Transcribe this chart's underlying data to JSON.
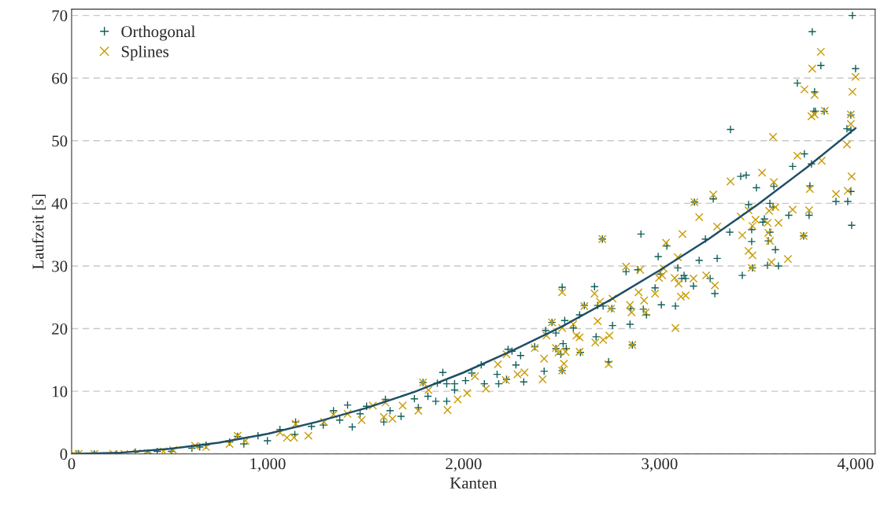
{
  "chart_data": {
    "type": "scatter",
    "xlabel": "Kanten",
    "ylabel": "Laufzeit [s]",
    "xlim": [
      0,
      4100
    ],
    "ylim": [
      0,
      71
    ],
    "xticks": [
      0,
      {
        "value": 1000,
        "label": "1,000"
      },
      {
        "value": 2000,
        "label": "2,000"
      },
      {
        "value": 3000,
        "label": "3,000"
      },
      {
        "value": 4000,
        "label": "4,000"
      }
    ],
    "yticks": [
      0,
      10,
      20,
      30,
      40,
      50,
      60,
      70
    ],
    "grid": "y",
    "legend": "top left",
    "series": [
      {
        "name": "Orthogonal",
        "color": "#0f5f5a",
        "marker": "plus",
        "x": [
          3984,
          3779,
          3823,
          4000,
          3703,
          3791,
          3787,
          3795,
          3840,
          3976,
          3362,
          3956,
          3976,
          3739,
          3775,
          3679,
          3414,
          3442,
          3494,
          3583,
          3767,
          3976,
          3900,
          3960,
          3454,
          3274,
          3178,
          3563,
          3579,
          3659,
          3763,
          3535,
          3527,
          3470,
          3563,
          2905,
          3234,
          3358,
          3980,
          3470,
          3555,
          3735,
          2708,
          3591,
          2993,
          3202,
          3294,
          2829,
          2889,
          3093,
          3037,
          3422,
          3551,
          3607,
          3474,
          3005,
          3125,
          3113,
          3133,
          3173,
          3258,
          3282,
          2977,
          2668,
          2503,
          2592,
          2616,
          2684,
          2712,
          2756,
          2853,
          2917,
          2933,
          3009,
          3081,
          2760,
          2849,
          2516,
          2560,
          2471,
          2508,
          2524,
          2471,
          2496,
          2596,
          2676,
          2861,
          2740,
          2503,
          2451,
          2419,
          2363,
          2227,
          2247,
          2291,
          2267,
          2307,
          2411,
          2171,
          2179,
          2219,
          2090,
          2042,
          2010,
          2106,
          1954,
          1914,
          1866,
          1894,
          1954,
          1914,
          1858,
          1818,
          1793,
          1749,
          1681,
          1769,
          1601,
          1593,
          1625,
          1505,
          1472,
          1408,
          1432,
          1336,
          1368,
          1284,
          1224,
          1143,
          1139,
          1063,
          951,
          847,
          806,
          879,
          999,
          686,
          654,
          614,
          510,
          437,
          389,
          325,
          229,
          116,
          36
        ],
        "values": [
          70.0,
          67.4,
          62.0,
          61.5,
          59.2,
          57.8,
          54.7,
          54.7,
          54.7,
          54.1,
          51.8,
          51.9,
          51.7,
          47.9,
          46.3,
          45.9,
          44.3,
          44.5,
          42.5,
          42.7,
          42.8,
          41.9,
          40.3,
          40.3,
          39.8,
          40.7,
          40.2,
          40.0,
          39.4,
          38.1,
          38.1,
          37.5,
          37.0,
          35.8,
          35.4,
          35.1,
          34.3,
          35.4,
          36.5,
          33.9,
          34.0,
          34.8,
          34.3,
          32.6,
          31.5,
          30.9,
          31.2,
          29.1,
          29.4,
          29.7,
          33.2,
          28.5,
          30.1,
          30.0,
          29.7,
          28.7,
          28.5,
          28.0,
          28.0,
          26.8,
          28.0,
          25.6,
          26.5,
          26.7,
          26.6,
          22.2,
          23.7,
          23.7,
          23.6,
          23.2,
          23.2,
          23.1,
          22.2,
          23.8,
          23.6,
          20.5,
          20.7,
          21.3,
          20.1,
          19.3,
          17.6,
          16.8,
          16.8,
          15.9,
          16.2,
          18.7,
          17.4,
          14.7,
          13.3,
          21.0,
          19.7,
          17.1,
          16.7,
          16.4,
          15.7,
          14.2,
          11.5,
          13.2,
          12.7,
          11.2,
          11.9,
          14.2,
          12.9,
          11.7,
          11.2,
          11.2,
          11.2,
          11.3,
          13.0,
          10.2,
          8.4,
          8.4,
          9.2,
          11.4,
          8.8,
          6.0,
          7.4,
          8.7,
          5.1,
          6.9,
          7.6,
          6.4,
          7.8,
          4.3,
          6.9,
          5.4,
          4.6,
          4.4,
          5.1,
          3.1,
          3.9,
          2.9,
          2.8,
          1.9,
          1.6,
          2.1,
          1.4,
          1.1,
          0.9,
          0.4,
          0.4,
          0.1,
          0.3,
          0,
          0,
          0
        ]
      },
      {
        "name": "Splines",
        "color": "#c89b00",
        "marker": "cross",
        "x": [
          3823,
          3779,
          4000,
          3984,
          3739,
          3791,
          3775,
          3791,
          3843,
          3976,
          3976,
          3579,
          3956,
          3703,
          3827,
          3523,
          3362,
          3583,
          3980,
          3274,
          3178,
          3767,
          3900,
          3960,
          3679,
          3763,
          3454,
          3591,
          3414,
          3202,
          3490,
          3559,
          3294,
          3117,
          3422,
          3607,
          3551,
          3555,
          3474,
          3735,
          2708,
          3033,
          3093,
          2829,
          2901,
          3021,
          2997,
          3013,
          3077,
          3097,
          3173,
          3238,
          3282,
          3470,
          3454,
          3474,
          3571,
          3655,
          3563,
          2893,
          2977,
          2921,
          3109,
          3133,
          2668,
          2503,
          2760,
          2696,
          2752,
          2849,
          2857,
          2929,
          2616,
          2684,
          2560,
          2503,
          2576,
          2592,
          2744,
          2712,
          2672,
          3081,
          2861,
          2471,
          2484,
          2520,
          2512,
          2592,
          2740,
          2503,
          2451,
          2423,
          2363,
          2411,
          2403,
          2311,
          2275,
          2219,
          2175,
          2215,
          2114,
          2058,
          2018,
          1970,
          1918,
          1821,
          1793,
          1769,
          1689,
          1637,
          1593,
          1601,
          1537,
          1480,
          1408,
          1336,
          1288,
          1208,
          1143,
          1135,
          1099,
          1063,
          847,
          887,
          806,
          686,
          630,
          518,
          469,
          389,
          333,
          269,
          213,
          116,
          36,
          12
        ],
        "values": [
          64.2,
          61.5,
          60.2,
          57.8,
          58.2,
          57.3,
          53.9,
          54.2,
          54.8,
          54.2,
          52.7,
          50.6,
          49.4,
          47.6,
          46.8,
          44.9,
          43.5,
          43.4,
          44.3,
          41.4,
          40.2,
          42.3,
          41.5,
          42.0,
          39.0,
          38.9,
          38.9,
          39.4,
          37.9,
          37.8,
          37.4,
          38.8,
          36.3,
          35.1,
          34.9,
          36.9,
          36.9,
          35.3,
          36.4,
          34.8,
          34.3,
          33.7,
          31.4,
          29.9,
          29.4,
          29.6,
          28.1,
          28.5,
          28.1,
          27.2,
          28.0,
          28.5,
          26.9,
          29.7,
          32.4,
          31.7,
          30.6,
          31.1,
          34.0,
          25.8,
          25.6,
          24.5,
          25.1,
          25.3,
          25.6,
          25.8,
          24.8,
          24.3,
          23.2,
          23.8,
          22.6,
          22.6,
          23.6,
          21.2,
          20.7,
          20.1,
          18.9,
          18.6,
          18.9,
          18.2,
          17.8,
          20.1,
          17.4,
          16.9,
          16.2,
          16.3,
          14.4,
          16.3,
          14.3,
          13.3,
          21.0,
          18.9,
          16.9,
          15.2,
          11.9,
          13.0,
          12.7,
          15.9,
          14.3,
          11.8,
          10.4,
          12.4,
          9.7,
          8.7,
          7.0,
          10.2,
          11.4,
          6.9,
          7.7,
          5.6,
          5.9,
          8.2,
          7.7,
          5.4,
          6.4,
          6.3,
          5.1,
          2.9,
          4.8,
          2.6,
          2.6,
          3.4,
          2.9,
          2.1,
          1.6,
          1.1,
          1.3,
          0.6,
          0.4,
          0.1,
          0.1,
          0,
          0,
          0,
          0,
          0
        ]
      },
      {
        "type": "line",
        "color": "#1f4e66",
        "x": [
          0,
          250,
          500,
          750,
          1000,
          1250,
          1500,
          1750,
          2000,
          2250,
          2500,
          2750,
          3000,
          3250,
          3500,
          3750,
          4000
        ],
        "values": [
          0,
          0.2,
          0.8,
          1.8,
          3.2,
          5.1,
          7.3,
          9.9,
          13,
          16.5,
          20.3,
          24.6,
          29.3,
          34.3,
          39.8,
          45.7,
          52
        ]
      }
    ]
  }
}
